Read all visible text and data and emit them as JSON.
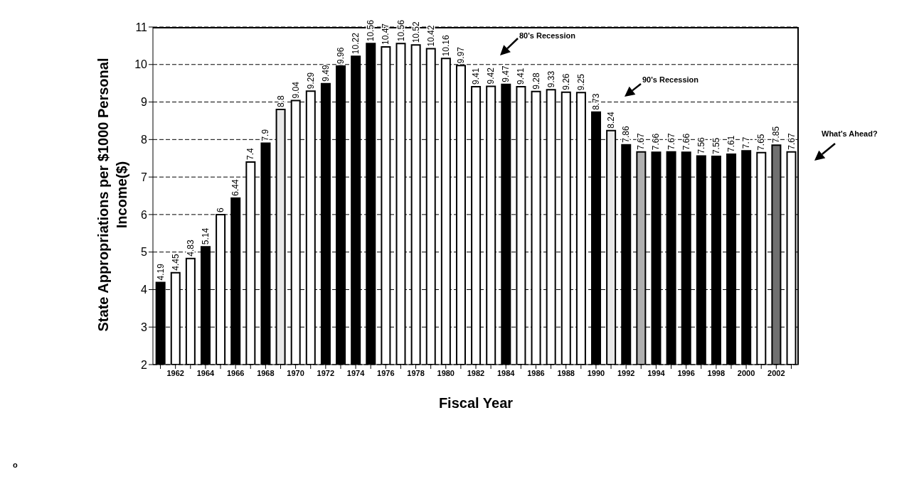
{
  "chart_data": {
    "type": "bar",
    "xlabel": "Fiscal Year",
    "ylabel": "State Appropriations per $1000 Personal Income($)",
    "categories": [
      null,
      "1962",
      null,
      "1964",
      null,
      "1966",
      null,
      "1968",
      null,
      "1970",
      null,
      "1972",
      null,
      "1974",
      null,
      "1976",
      null,
      "1978",
      null,
      "1980",
      null,
      "1982",
      null,
      "1984",
      null,
      "1986",
      null,
      "1988",
      null,
      "1990",
      null,
      "1992",
      null,
      "1994",
      null,
      "1996",
      null,
      "1998",
      null,
      "2000",
      null,
      "2002",
      null
    ],
    "values": [
      4.19,
      4.45,
      4.83,
      5.14,
      6,
      6.44,
      7.4,
      7.9,
      8.8,
      9.04,
      9.29,
      9.49,
      9.96,
      10.22,
      10.56,
      10.47,
      10.56,
      10.52,
      10.42,
      10.16,
      9.97,
      9.41,
      9.42,
      9.47,
      9.41,
      9.28,
      9.33,
      9.26,
      9.25,
      8.73,
      8.24,
      7.86,
      7.67,
      7.66,
      7.67,
      7.66,
      7.56,
      7.55,
      7.61,
      7.7,
      7.65,
      7.85,
      7.67
    ],
    "colors": [
      "#000000",
      "#ffffff",
      "#ffffff",
      "#000000",
      "#ffffff",
      "#000000",
      "#ffffff",
      "#000000",
      "#e8e8e8",
      "#ffffff",
      "#ffffff",
      "#000000",
      "#000000",
      "#000000",
      "#000000",
      "#ffffff",
      "#ffffff",
      "#ffffff",
      "#ffffff",
      "#ffffff",
      "#ffffff",
      "#ffffff",
      "#ffffff",
      "#000000",
      "#ffffff",
      "#ffffff",
      "#ffffff",
      "#ffffff",
      "#ffffff",
      "#000000",
      "#e8e8e8",
      "#000000",
      "#b0b0b0",
      "#000000",
      "#000000",
      "#000000",
      "#000000",
      "#000000",
      "#000000",
      "#000000",
      "#ffffff",
      "#707070",
      "#ffffff"
    ],
    "ylim": [
      2,
      11
    ],
    "yticks": [
      2,
      3,
      4,
      5,
      6,
      7,
      8,
      9,
      10,
      11
    ],
    "grid": "y",
    "data_labels": true,
    "legend": false,
    "annotations": [
      "80's Recession",
      "90's Recession",
      "What's Ahead?",
      "o"
    ]
  }
}
